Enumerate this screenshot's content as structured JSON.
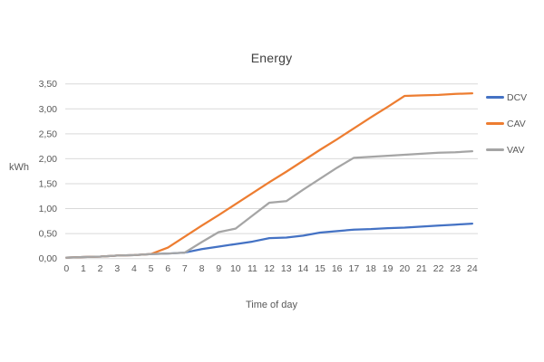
{
  "chart_data": {
    "type": "line",
    "title": "Energy",
    "xlabel": "Time of day",
    "ylabel": "kWh",
    "x": [
      0,
      1,
      2,
      3,
      4,
      5,
      6,
      7,
      8,
      9,
      10,
      11,
      12,
      13,
      14,
      15,
      16,
      17,
      18,
      19,
      20,
      21,
      22,
      23,
      24
    ],
    "xlim": [
      0,
      24
    ],
    "ylim": [
      0,
      3.5
    ],
    "y_tick_step": 0.5,
    "y_tick_labels": [
      "0,00",
      "0,50",
      "1,00",
      "1,50",
      "2,00",
      "2,50",
      "3,00",
      "3,50"
    ],
    "grid": "horizontal",
    "gridline_color": "#D9D9D9",
    "text_color": "#595959",
    "title_color": "#404040",
    "legend_position": "right",
    "series": [
      {
        "name": "DCV",
        "color": "#4472C4",
        "values": [
          0.02,
          0.03,
          0.04,
          0.06,
          0.07,
          0.09,
          0.1,
          0.12,
          0.19,
          0.24,
          0.29,
          0.34,
          0.41,
          0.42,
          0.46,
          0.52,
          0.55,
          0.58,
          0.59,
          0.61,
          0.62,
          0.64,
          0.66,
          0.68,
          0.7
        ]
      },
      {
        "name": "CAV",
        "color": "#ED7D31",
        "values": [
          0.02,
          0.03,
          0.04,
          0.06,
          0.07,
          0.09,
          0.22,
          0.44,
          0.66,
          0.87,
          1.09,
          1.31,
          1.53,
          1.74,
          1.96,
          2.18,
          2.39,
          2.61,
          2.83,
          3.04,
          3.26,
          3.27,
          3.28,
          3.3,
          3.31
        ]
      },
      {
        "name": "VAV",
        "color": "#A5A5A5",
        "values": [
          0.02,
          0.03,
          0.04,
          0.06,
          0.07,
          0.09,
          0.1,
          0.12,
          0.33,
          0.53,
          0.6,
          0.86,
          1.12,
          1.15,
          1.38,
          1.6,
          1.82,
          2.02,
          2.04,
          2.06,
          2.08,
          2.1,
          2.12,
          2.13,
          2.15
        ]
      }
    ]
  }
}
